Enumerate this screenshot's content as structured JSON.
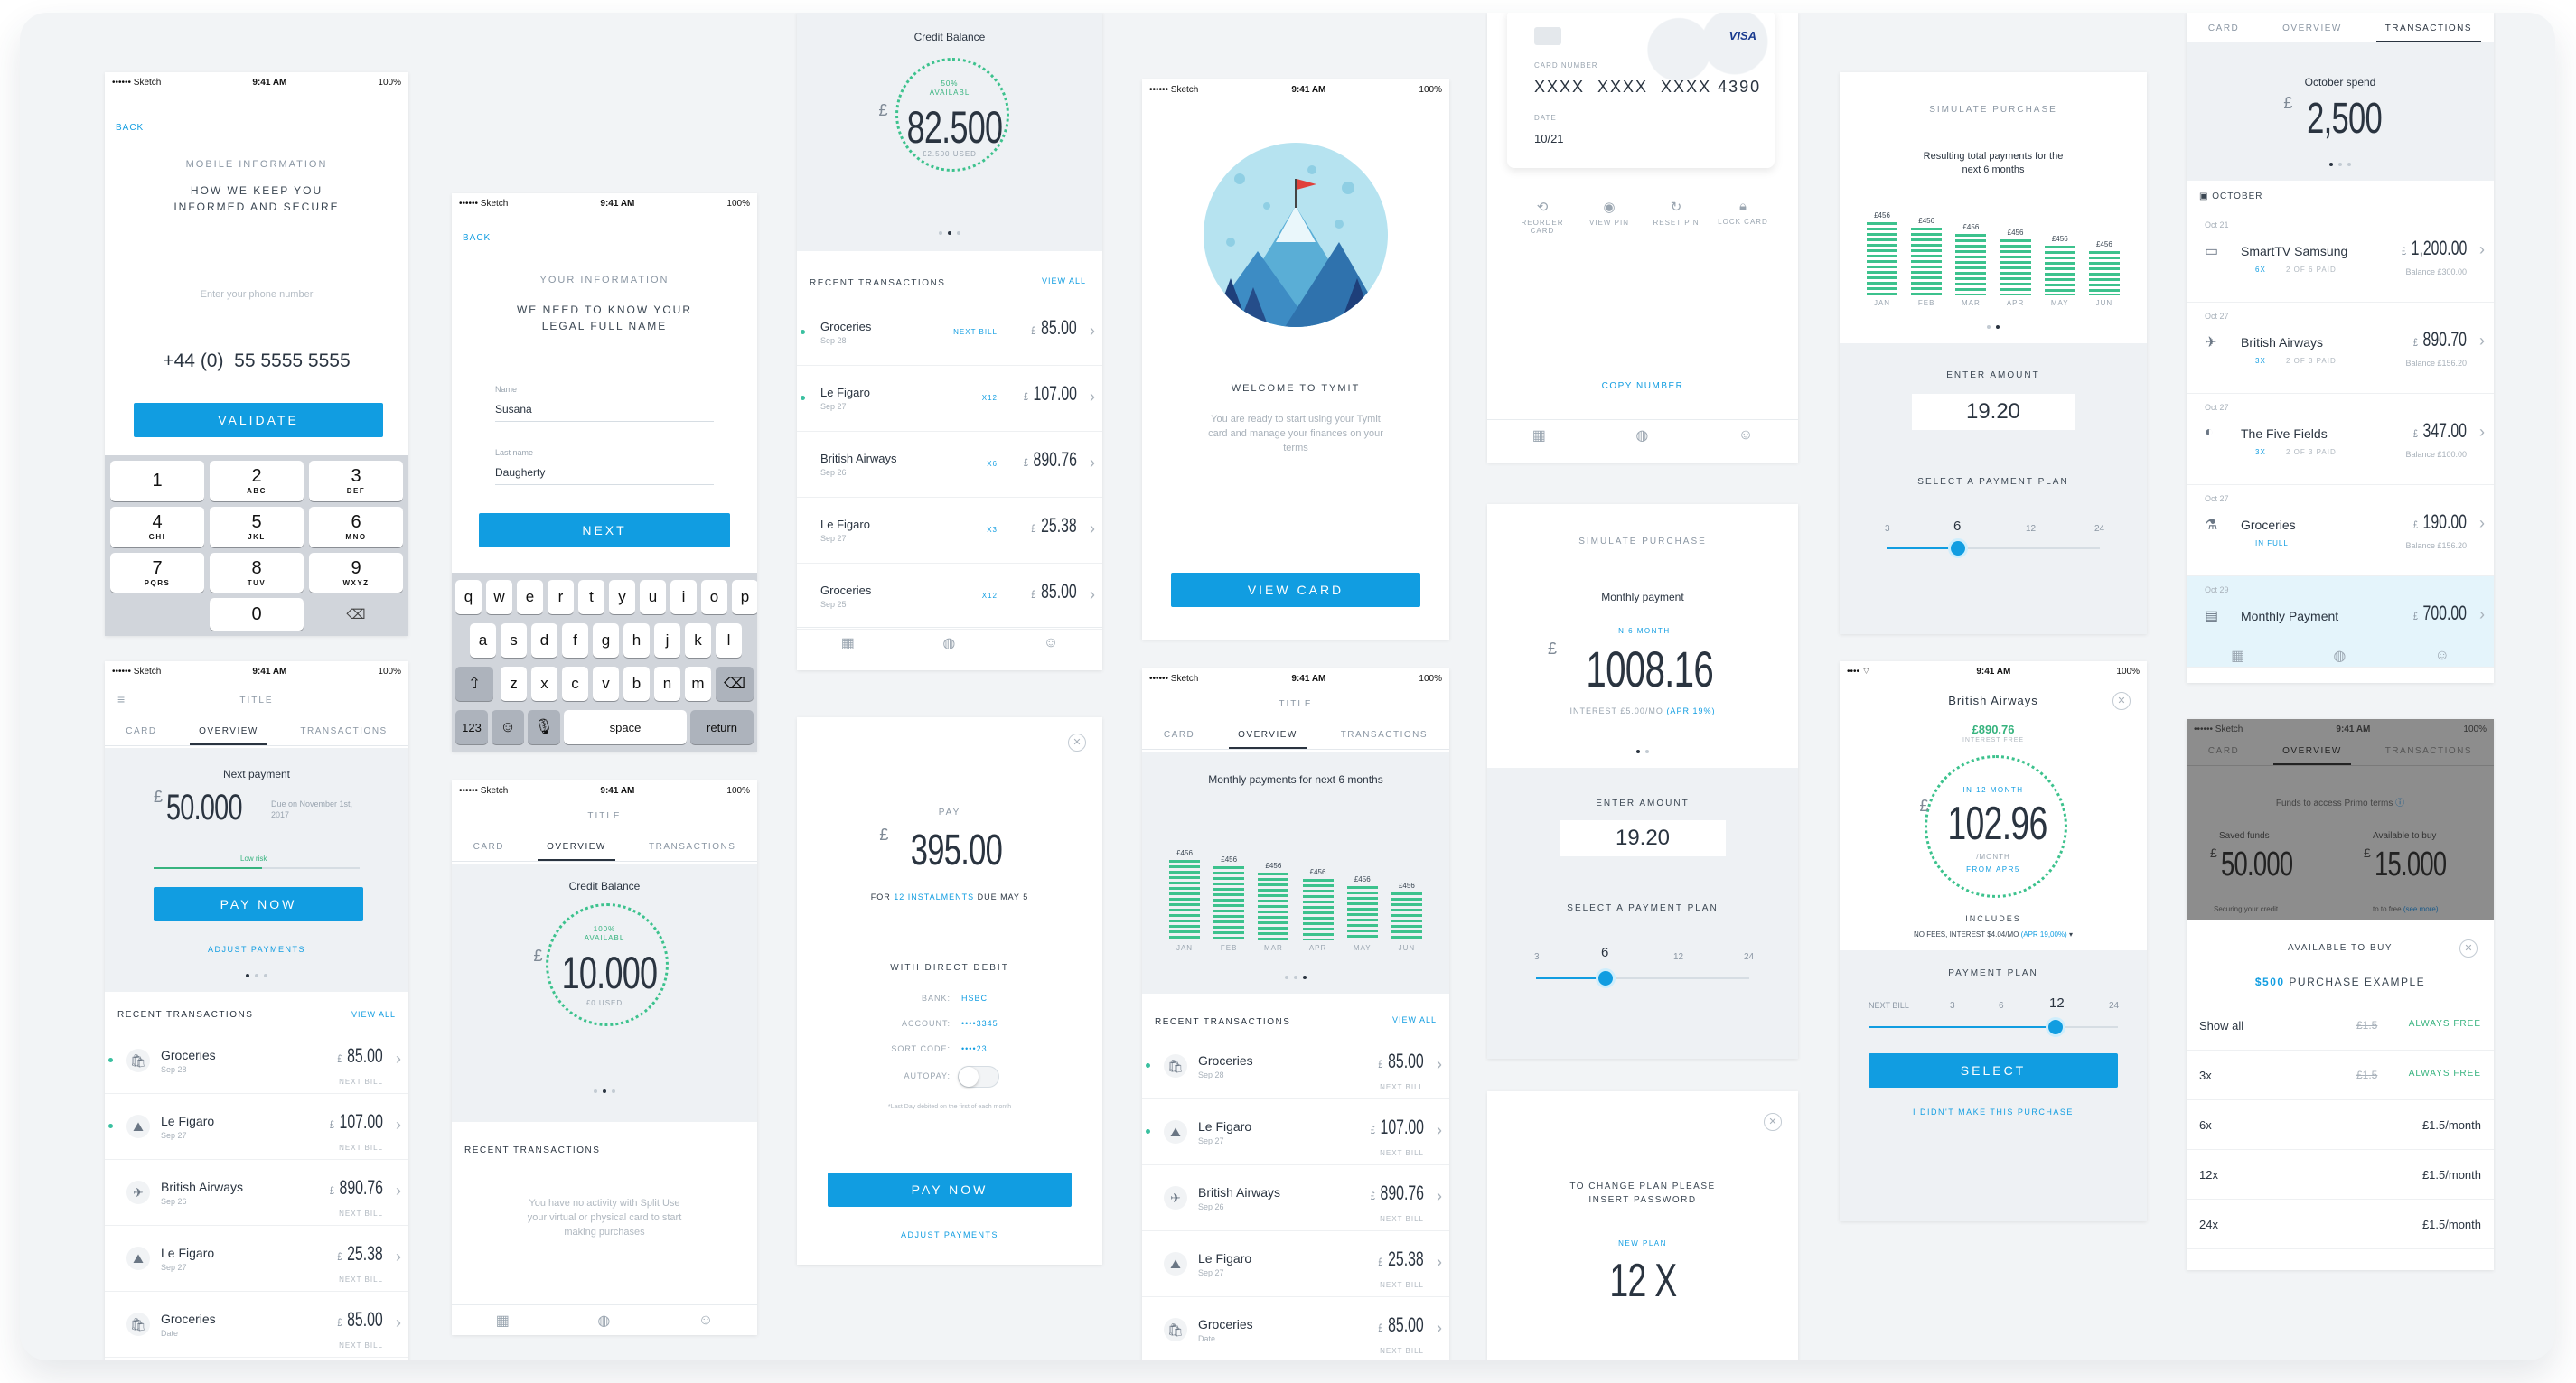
{
  "status": {
    "carrier": "•••••• Sketch",
    "time": "9:41 AM",
    "battery": "100%"
  },
  "s1": {
    "back": "BACK",
    "title": "MOBILE INFORMATION",
    "subtitle": "HOW WE KEEP YOU INFORMED AND SECURE",
    "placeholder": "Enter your phone number",
    "prefix": "+44 (0)",
    "phone": "55 5555 5555",
    "button": "VALIDATE",
    "keys": [
      [
        "1",
        ""
      ],
      [
        "2",
        "ABC"
      ],
      [
        "3",
        "DEF"
      ],
      [
        "4",
        "GHI"
      ],
      [
        "5",
        "JKL"
      ],
      [
        "6",
        "MNO"
      ],
      [
        "7",
        "PQRS"
      ],
      [
        "8",
        "TUV"
      ],
      [
        "9",
        "WXYZ"
      ],
      [
        "",
        ""
      ],
      [
        "0",
        ""
      ],
      [
        "⌫",
        ""
      ]
    ]
  },
  "s2": {
    "back": "BACK",
    "title": "YOUR INFORMATION",
    "subtitle": "WE NEED TO KNOW YOUR LEGAL FULL NAME",
    "name_label": "Name",
    "name": "Susana",
    "last_label": "Last name",
    "last": "Daugherty",
    "button": "NEXT",
    "row1": [
      "q",
      "w",
      "e",
      "r",
      "t",
      "y",
      "u",
      "i",
      "o",
      "p"
    ],
    "row2": [
      "a",
      "s",
      "d",
      "f",
      "g",
      "h",
      "j",
      "k",
      "l"
    ],
    "row3": [
      "z",
      "x",
      "c",
      "v",
      "b",
      "n",
      "m"
    ],
    "k123": "123",
    "space": "space",
    "ret": "return"
  },
  "s3": {
    "title": "Credit Balance",
    "pct": "50% AVAILABL",
    "amount": "82.500",
    "used": "£2.500 USED",
    "recent": "RECENT TRANSACTIONS",
    "view": "VIEW ALL",
    "rows": [
      {
        "name": "Groceries",
        "date": "Sep 28",
        "tag": "NEXT BILL",
        "amt": "85.00",
        "dot": true
      },
      {
        "name": "Le Figaro",
        "date": "Sep 27",
        "tag": "X12",
        "amt": "107.00",
        "dot": true
      },
      {
        "name": "British Airways",
        "date": "Sep 26",
        "tag": "X6",
        "amt": "890.76",
        "dot": false
      },
      {
        "name": "Le Figaro",
        "date": "Sep 27",
        "tag": "X3",
        "amt": "25.38",
        "dot": false
      },
      {
        "name": "Groceries",
        "date": "Sep 25",
        "tag": "X12",
        "amt": "85.00",
        "dot": false
      }
    ]
  },
  "s4": {
    "welcome": "WELCOME TO TYMIT",
    "text": "You are ready to start using your Tymit card and manage your finances on your terms",
    "button": "VIEW CARD"
  },
  "s5": {
    "brand": "VISA",
    "card_label": "CARD NUMBER",
    "number": "XXXX  XXXX  XXXX 4390",
    "date_label": "DATE",
    "date": "10/21",
    "actions": [
      "REORDER CARD",
      "VIEW PIN",
      "RESET PIN",
      "LOCK CARD"
    ],
    "copy": "COPY NUMBER"
  },
  "s6": {
    "title": "SIMULATE PURCHASE",
    "subtitle": "Resulting total payments for the next 6 months",
    "enter": "ENTER AMOUNT",
    "amount": "19.20",
    "plan": "SELECT A PAYMENT PLAN",
    "ticks": [
      "3",
      "6",
      "12",
      "24"
    ],
    "selected": "6"
  },
  "s7": {
    "tabs": [
      "CARD",
      "OVERVIEW",
      "TRANSACTIONS"
    ],
    "spend_label": "October spend",
    "spend": "2,500",
    "month": "OCTOBER",
    "rows": [
      {
        "date": "Oct 21",
        "name": "SmartTV Samsung",
        "amt": "1,200.00",
        "x": "6X",
        "paid": "2 OF 6 PAID",
        "bal": "Balance £300.00"
      },
      {
        "date": "Oct 27",
        "name": "British Airways",
        "amt": "890.70",
        "x": "3X",
        "paid": "2 OF 3 PAID",
        "bal": "Balance £156.20"
      },
      {
        "date": "Oct 27",
        "name": "The Five Fields",
        "amt": "347.00",
        "x": "3X",
        "paid": "2 OF 3 PAID",
        "bal": "Balance £100.00"
      },
      {
        "date": "Oct 27",
        "name": "Groceries",
        "amt": "190.00",
        "x": "IN FULL",
        "paid": "",
        "bal": "Balance £156.20"
      },
      {
        "date": "Oct 29",
        "name": "Monthly Payment",
        "amt": "700.00",
        "x": "",
        "paid": "",
        "bal": ""
      }
    ]
  },
  "s8": {
    "title": "TITLE",
    "tabs": [
      "CARD",
      "OVERVIEW",
      "TRANSACTIONS"
    ],
    "next": "Next payment",
    "amount": "50.000",
    "due": "Due on November 1st, 2017",
    "risk": "Low risk",
    "button": "PAY NOW",
    "adjust": "ADJUST PAYMENTS",
    "recent": "RECENT TRANSACTIONS",
    "view": "VIEW ALL",
    "rows": [
      {
        "name": "Groceries",
        "date": "Sep 28",
        "amt": "85.00",
        "dot": true
      },
      {
        "name": "Le Figaro",
        "date": "Sep 27",
        "amt": "107.00",
        "dot": true
      },
      {
        "name": "British Airways",
        "date": "Sep 26",
        "amt": "890.76",
        "dot": false
      },
      {
        "name": "Le Figaro",
        "date": "Sep 27",
        "amt": "25.38",
        "dot": false
      },
      {
        "name": "Groceries",
        "date": "Date",
        "amt": "85.00",
        "dot": false
      }
    ],
    "next_bill": "NEXT BILL"
  },
  "s9": {
    "title": "TITLE",
    "tabs": [
      "CARD",
      "OVERVIEW",
      "TRANSACTIONS"
    ],
    "credit": "Credit Balance",
    "pct": "100% AVAILABL",
    "amount": "10.000",
    "used": "£0 USED",
    "recent": "RECENT TRANSACTIONS",
    "empty": "You have no activity with Split Use your virtual or physical card to start making purchases"
  },
  "s10": {
    "pay": "PAY",
    "amount": "395.00",
    "for1": "FOR",
    "inst": "12 INSTALMENTS",
    "for2": "DUE MAY 5",
    "dd": "WITH DIRECT DEBIT",
    "bank_l": "BANK:",
    "bank": "HSBC",
    "acc_l": "ACCOUNT:",
    "acc": "••••3345",
    "sort_l": "SORT CODE:",
    "sort": "••••23",
    "auto": "AUTOPAY:",
    "fine": "*Last Day debited on the first of each month",
    "button": "PAY NOW",
    "adjust": "ADJUST PAYMENTS"
  },
  "s11": {
    "title": "TITLE",
    "tabs": [
      "CARD",
      "OVERVIEW",
      "TRANSACTIONS"
    ],
    "chart_title": "Monthly payments for next 6 months",
    "recent": "RECENT TRANSACTIONS",
    "view": "VIEW ALL",
    "rows": [
      {
        "name": "Groceries",
        "date": "Sep 28",
        "amt": "85.00",
        "dot": true
      },
      {
        "name": "Le Figaro",
        "date": "Sep 27",
        "amt": "107.00",
        "dot": true
      },
      {
        "name": "British Airways",
        "date": "Sep 26",
        "amt": "890.76",
        "dot": false
      },
      {
        "name": "Le Figaro",
        "date": "Sep 27",
        "amt": "25.38",
        "dot": false
      },
      {
        "name": "Groceries",
        "date": "Date",
        "amt": "85.00",
        "dot": false
      }
    ],
    "next_bill": "NEXT BILL"
  },
  "s12": {
    "title": "SIMULATE PURCHASE",
    "monthly": "Monthly payment",
    "in": "IN 6 MONTH",
    "amount": "1008.16",
    "interest": "INTEREST £5.00/MO",
    "apr": "(APR 19%)",
    "enter": "ENTER AMOUNT",
    "value": "19.20",
    "plan": "SELECT A PAYMENT PLAN",
    "ticks": [
      "3",
      "6",
      "12",
      "24"
    ],
    "selected": "6"
  },
  "s13": {
    "text": "TO CHANGE PLAN PLEASE INSERT PASSWORD",
    "new": "NEW PLAN",
    "plan": "12 X"
  },
  "s14": {
    "title": "British Airways",
    "amt": "£890.76",
    "free": "INTEREST FREE",
    "in": "IN 12 MONTH",
    "amount": "102.96",
    "month": "/MONTH",
    "from": "FROM APR5",
    "includes": "INCLUDES",
    "fees": "NO FEES, INTEREST $4.04/MO",
    "apr": "(APR 19,00%)",
    "plan": "PAYMENT PLAN",
    "ticks": [
      "NEXT BILL",
      "3",
      "6",
      "12",
      "24"
    ],
    "selected": "12",
    "button": "SELECT",
    "link": "I DIDN'T MAKE THIS PURCHASE"
  },
  "s15": {
    "tabs": [
      "CARD",
      "OVERVIEW",
      "TRANSACTIONS"
    ],
    "funds": "Funds to access Primo terms",
    "saved_l": "Saved funds",
    "saved": "50.000",
    "avail_l": "Available to buy",
    "avail": "15.000",
    "secure": "Securing your credit",
    "buy": "to to free",
    "see": "(see more)",
    "available": "AVAILABLE TO BUY",
    "example_amt": "$500",
    "example": "PURCHASE EXAMPLE",
    "rows": [
      {
        "k": "Show all",
        "strike": "£1.5",
        "v": "ALWAYS FREE"
      },
      {
        "k": "3x",
        "strike": "£1.5",
        "v": "ALWAYS FREE"
      },
      {
        "k": "6x",
        "strike": "",
        "v": "£1.5/month"
      },
      {
        "k": "12x",
        "strike": "",
        "v": "£1.5/month"
      },
      {
        "k": "24x",
        "strike": "",
        "v": "£1.5/month"
      }
    ]
  },
  "chart_data": [
    {
      "type": "bar",
      "categories": [
        "JAN",
        "FEB",
        "MAR",
        "APR",
        "MAY",
        "JUN"
      ],
      "values": [
        456,
        456,
        456,
        456,
        456,
        456
      ],
      "title": "Resulting total payments for the next 6 months"
    },
    {
      "type": "bar",
      "categories": [
        "JAN",
        "FEB",
        "MAR",
        "APR",
        "MAY",
        "JUN"
      ],
      "values": [
        456,
        456,
        456,
        456,
        456,
        456
      ],
      "title": "Monthly payments for next 6 months"
    }
  ]
}
